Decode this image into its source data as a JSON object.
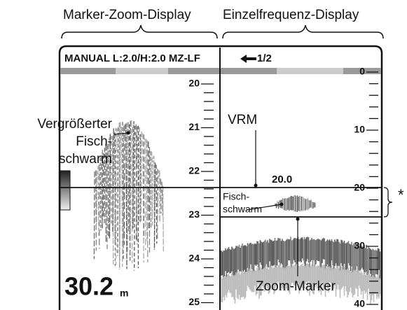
{
  "headings": {
    "left": "Marker-Zoom-Display",
    "right": "Einzelfrequenz-Display"
  },
  "screen": {
    "mode": "MANUAL L:2.0/H:2.0 MZ-LF",
    "page": "1/2",
    "left_scale": [
      20,
      21,
      22,
      23,
      24,
      25
    ],
    "right_scale": [
      0,
      10,
      20,
      30,
      40
    ],
    "depth": 30.2,
    "unit": "m",
    "vrm_value": "20.0"
  },
  "callouts": {
    "magnified_school": [
      "Vergrößerter",
      "Fisch-",
      "schwarm"
    ],
    "vrm": "VRM",
    "school": [
      "Fisch-",
      "schwarm"
    ],
    "zoom_marker": "Zoom-Marker",
    "asterisk": "*"
  }
}
